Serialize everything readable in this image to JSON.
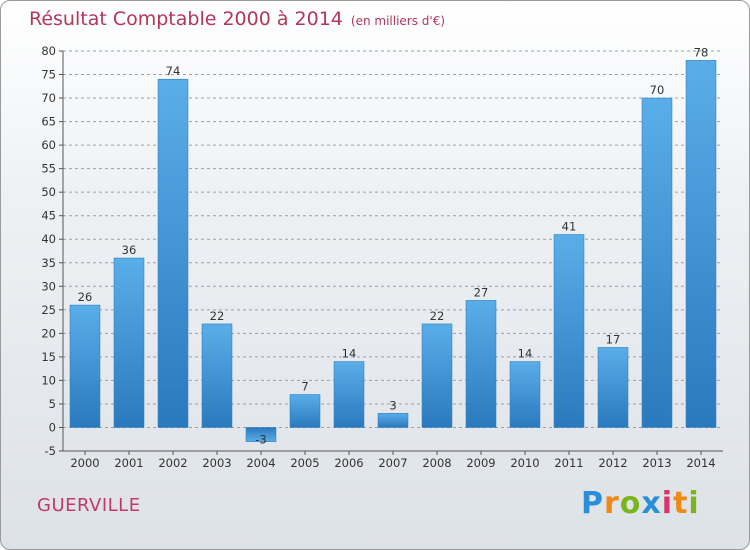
{
  "title": "Résultat Comptable 2000 à 2014",
  "subtitle": "(en milliers d'€)",
  "location": "GUERVILLE",
  "logo": {
    "text": "Proxiti",
    "letters": [
      {
        "ch": "P",
        "color": "#2a8fd6"
      },
      {
        "ch": "r",
        "color": "#f08a16"
      },
      {
        "ch": "o",
        "color": "#7ab51d"
      },
      {
        "ch": "x",
        "color": "#2a8fd6"
      },
      {
        "ch": "i",
        "color": "#d8356a"
      },
      {
        "ch": "t",
        "color": "#f08a16"
      },
      {
        "ch": "i",
        "color": "#7ab51d"
      }
    ]
  },
  "colors": {
    "title": "#b5365b",
    "bar": "#3f95d5",
    "bar_dark": "#2a79bd",
    "grid": "#9aa0a6"
  },
  "chart_data": {
    "type": "bar",
    "title": "Résultat Comptable 2000 à 2014",
    "subtitle": "(en milliers d'€)",
    "categories": [
      "2000",
      "2001",
      "2002",
      "2003",
      "2004",
      "2005",
      "2006",
      "2007",
      "2008",
      "2009",
      "2010",
      "2011",
      "2012",
      "2013",
      "2014"
    ],
    "values": [
      26,
      36,
      74,
      22,
      -3,
      7,
      14,
      3,
      22,
      27,
      14,
      41,
      17,
      70,
      78
    ],
    "value_labels": [
      "26",
      "36",
      "74",
      "22",
      "-3",
      "7",
      "14",
      "3",
      "22",
      "27",
      "14",
      "41",
      "17",
      "70",
      "78"
    ],
    "ylim": [
      -5,
      80
    ],
    "yticks": [
      -5,
      0,
      5,
      10,
      15,
      20,
      25,
      30,
      35,
      40,
      45,
      50,
      55,
      60,
      65,
      70,
      75,
      80
    ],
    "grid": true,
    "xlabel": "",
    "ylabel": ""
  }
}
